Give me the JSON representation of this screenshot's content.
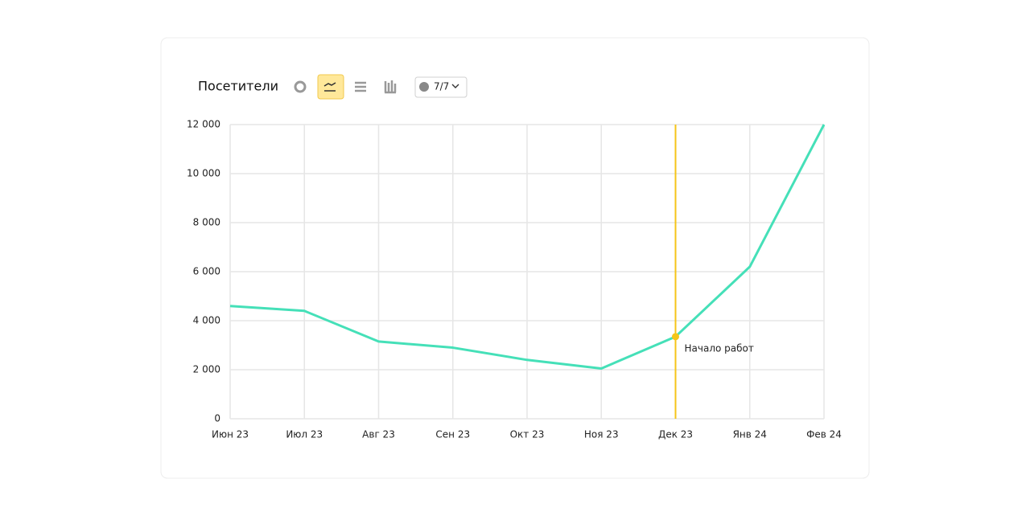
{
  "chart_data": {
    "type": "line",
    "title": "Посетители",
    "categories": [
      "Июн 23",
      "Июл 23",
      "Авг  23",
      "Сен 23",
      "Окт 23",
      "Ноя 23",
      "Дек 23",
      "Янв 24",
      "Фев 24"
    ],
    "series": [
      {
        "name": "Посетители",
        "color": "#45e0b8",
        "values": [
          4600,
          4400,
          3150,
          2900,
          2400,
          2050,
          3350,
          6200,
          12000
        ]
      }
    ],
    "ylim": [
      0,
      12000
    ],
    "yticks": [
      0,
      {
        "value": 2000,
        "label": "2 000"
      },
      {
        "value": 4000,
        "label": "4 000"
      },
      {
        "value": 6000,
        "label": "6 000"
      },
      {
        "value": 8000,
        "label": "8 000"
      },
      {
        "value": 10000,
        "label": "10 000"
      },
      {
        "value": 12000,
        "label": "12 000"
      }
    ],
    "grid": true,
    "annotation": {
      "text": "Начало работ",
      "x": "Дек 23",
      "color": "#f5c518"
    }
  },
  "toolbar": {
    "selection": "7/7"
  }
}
